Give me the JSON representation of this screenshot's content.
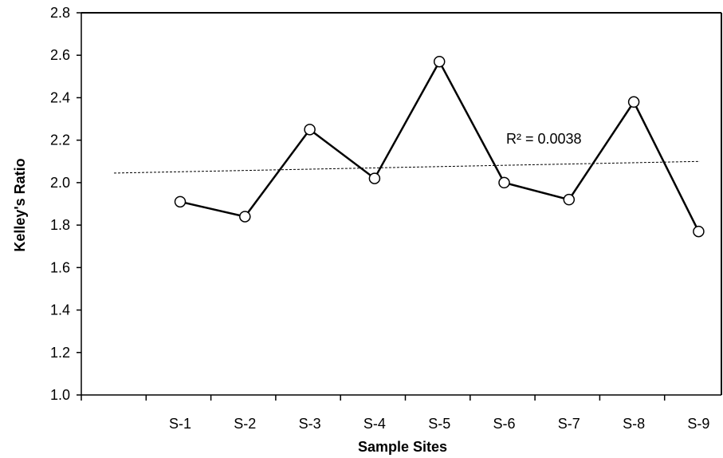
{
  "chart_data": {
    "type": "line",
    "title": "",
    "xlabel": "Sample Sites",
    "ylabel": "Kelley's Ratio",
    "categories": [
      "S-1",
      "S-2",
      "S-3",
      "S-4",
      "S-5",
      "S-6",
      "S-7",
      "S-8",
      "S-9"
    ],
    "series": [
      {
        "values": [
          1.91,
          1.84,
          2.25,
          2.02,
          2.57,
          2.0,
          1.92,
          2.38,
          1.77
        ],
        "color": "#000000",
        "marker": "open-circle"
      }
    ],
    "trendline": {
      "type": "linear",
      "style": "dotted",
      "start_value": 2.045,
      "end_value": 2.1
    },
    "annotation": "R² = 0.0038",
    "ylim": [
      1.0,
      2.8
    ],
    "y_ticks": [
      "1.0",
      "1.2",
      "1.4",
      "1.6",
      "1.8",
      "2.0",
      "2.2",
      "2.4",
      "2.6",
      "2.8"
    ],
    "grid": false,
    "legend": "none"
  }
}
